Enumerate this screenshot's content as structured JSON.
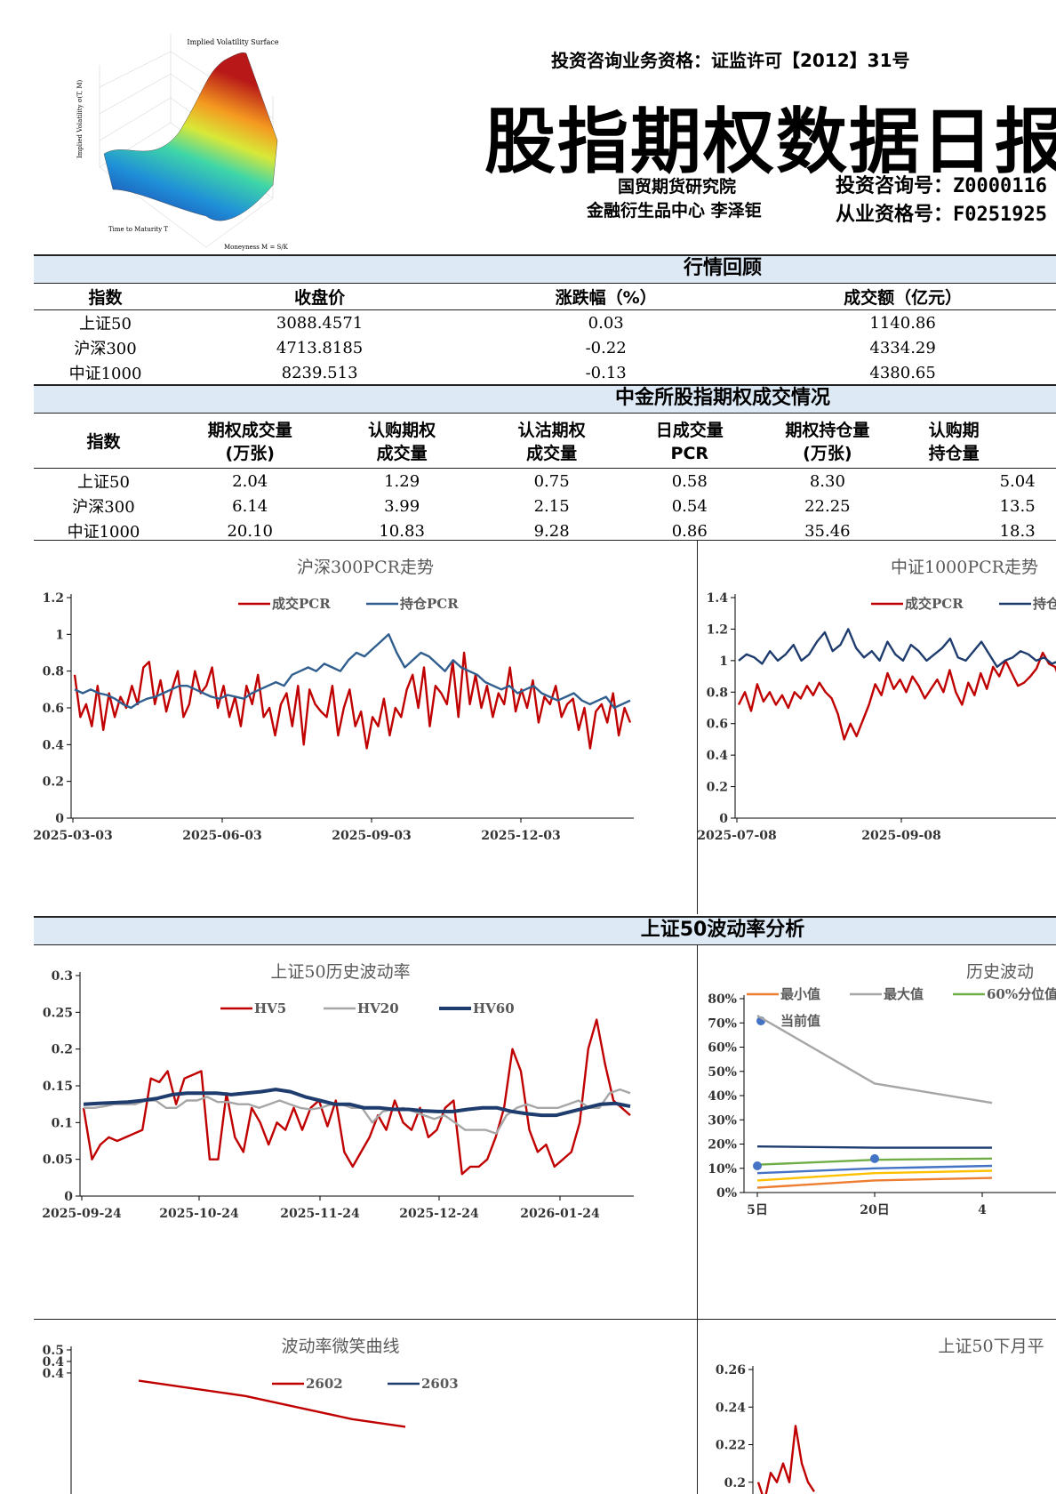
{
  "header": {
    "license": "投资咨询业务资格：证监许可【2012】31号",
    "title": "股指期权数据日报",
    "institute": "国贸期货研究院",
    "department": "金融衍生品中心  李泽钜",
    "advisory_label": "投资咨询号：",
    "advisory_no": "Z0000116",
    "cert_label": "从业资格号：",
    "cert_no": "F0251925",
    "logo": {
      "title": "Implied Volatility Surface",
      "ylabel": "Implied Volatility σ(T, M)",
      "xlabel": "Time to Maturity T",
      "zlabel": "Moneyness M = S/K"
    }
  },
  "market_review": {
    "title": "行情回顾",
    "columns": [
      "指数",
      "收盘价",
      "涨跌幅（%）",
      "成交额（亿元）"
    ],
    "rows": [
      [
        "上证50",
        "3088.4571",
        "0.03",
        "1140.86"
      ],
      [
        "沪深300",
        "4713.8185",
        "-0.22",
        "4334.29"
      ],
      [
        "中证1000",
        "8239.513",
        "-0.13",
        "4380.65"
      ]
    ]
  },
  "option_trading": {
    "title": "中金所股指期权成交情况",
    "columns": [
      [
        "指数",
        ""
      ],
      [
        "期权成交量",
        "(万张)"
      ],
      [
        "认购期权",
        "成交量"
      ],
      [
        "认沽期权",
        "成交量"
      ],
      [
        "日成交量",
        "PCR"
      ],
      [
        "期权持仓量",
        "(万张)"
      ],
      [
        "认购期",
        "持仓量"
      ]
    ],
    "rows": [
      [
        "上证50",
        "2.04",
        "1.29",
        "0.75",
        "0.58",
        "8.30",
        "5.04"
      ],
      [
        "沪深300",
        "6.14",
        "3.99",
        "2.15",
        "0.54",
        "22.25",
        "13.5"
      ],
      [
        "中证1000",
        "20.10",
        "10.83",
        "9.28",
        "0.86",
        "35.46",
        "18.3"
      ]
    ]
  },
  "vol_section_title": "上证50波动率分析",
  "chart_data": [
    {
      "id": "hs300-pcr",
      "type": "line",
      "title": "沪深300PCR走势",
      "ylim": [
        0,
        1.2
      ],
      "yticks": [
        "0",
        "0.2",
        "0.4",
        "0.6",
        "0.8",
        "1",
        "1.2"
      ],
      "xticks": [
        "2025-03-03",
        "2025-06-03",
        "2025-09-03",
        "2025-12-03"
      ],
      "series": [
        {
          "name": "成交PCR",
          "color": "#c00000",
          "values": [
            0.78,
            0.55,
            0.62,
            0.5,
            0.72,
            0.48,
            0.68,
            0.55,
            0.66,
            0.6,
            0.72,
            0.62,
            0.82,
            0.85,
            0.62,
            0.75,
            0.58,
            0.7,
            0.8,
            0.55,
            0.62,
            0.8,
            0.68,
            0.72,
            0.82,
            0.6,
            0.72,
            0.55,
            0.66,
            0.5,
            0.72,
            0.62,
            0.78,
            0.55,
            0.6,
            0.45,
            0.62,
            0.68,
            0.5,
            0.72,
            0.4,
            0.7,
            0.62,
            0.58,
            0.55,
            0.72,
            0.45,
            0.6,
            0.7,
            0.5,
            0.58,
            0.38,
            0.55,
            0.5,
            0.65,
            0.45,
            0.6,
            0.55,
            0.7,
            0.78,
            0.6,
            0.82,
            0.5,
            0.72,
            0.68,
            0.62,
            0.85,
            0.55,
            0.9,
            0.62,
            0.78,
            0.6,
            0.72,
            0.55,
            0.68,
            0.62,
            0.82,
            0.58,
            0.7,
            0.6,
            0.75,
            0.52,
            0.66,
            0.62,
            0.72,
            0.55,
            0.62,
            0.65,
            0.48,
            0.6,
            0.38,
            0.58,
            0.62,
            0.52,
            0.68,
            0.45,
            0.6,
            0.52
          ]
        },
        {
          "name": "持仓PCR",
          "color": "#305e8e",
          "values": [
            0.7,
            0.68,
            0.7,
            0.68,
            0.67,
            0.65,
            0.62,
            0.6,
            0.63,
            0.65,
            0.66,
            0.68,
            0.7,
            0.72,
            0.72,
            0.7,
            0.68,
            0.66,
            0.65,
            0.67,
            0.66,
            0.65,
            0.68,
            0.7,
            0.72,
            0.74,
            0.72,
            0.78,
            0.8,
            0.82,
            0.8,
            0.84,
            0.82,
            0.8,
            0.86,
            0.9,
            0.88,
            0.92,
            0.96,
            1.0,
            0.9,
            0.82,
            0.86,
            0.9,
            0.88,
            0.84,
            0.8,
            0.86,
            0.82,
            0.8,
            0.78,
            0.74,
            0.72,
            0.7,
            0.72,
            0.68,
            0.7,
            0.72,
            0.68,
            0.66,
            0.64,
            0.66,
            0.68,
            0.64,
            0.62,
            0.64,
            0.66,
            0.6,
            0.62,
            0.64
          ]
        }
      ]
    },
    {
      "id": "zz1000-pcr",
      "type": "line",
      "title": "中证1000PCR走势",
      "ylim": [
        0,
        1.4
      ],
      "yticks": [
        "0",
        "0.2",
        "0.4",
        "0.6",
        "0.8",
        "1",
        "1.2",
        "1.4"
      ],
      "xticks": [
        "2025-07-08",
        "2025-09-08"
      ],
      "series": [
        {
          "name": "成交PCR",
          "color": "#c00000",
          "values": [
            0.72,
            0.8,
            0.68,
            0.85,
            0.74,
            0.8,
            0.72,
            0.78,
            0.7,
            0.8,
            0.76,
            0.84,
            0.78,
            0.86,
            0.8,
            0.76,
            0.66,
            0.5,
            0.6,
            0.52,
            0.62,
            0.72,
            0.85,
            0.78,
            0.92,
            0.82,
            0.88,
            0.8,
            0.9,
            0.84,
            0.76,
            0.82,
            0.88,
            0.8,
            0.94,
            0.8,
            0.72,
            0.86,
            0.78,
            0.92,
            0.82,
            0.96,
            0.9,
            1.0,
            0.92,
            0.84,
            0.86,
            0.9,
            0.95,
            1.05,
            0.98,
            0.96,
            0.85,
            0.92
          ]
        },
        {
          "name": "持仓PCR",
          "color": "#1f3c6e",
          "values": [
            1.0,
            1.04,
            1.02,
            0.98,
            1.06,
            1.0,
            1.04,
            1.1,
            1.0,
            1.04,
            1.12,
            1.18,
            1.06,
            1.1,
            1.2,
            1.08,
            1.02,
            1.06,
            1.0,
            1.12,
            1.04,
            1.0,
            1.1,
            1.06,
            1.0,
            1.04,
            1.08,
            1.14,
            1.02,
            1.0,
            1.06,
            1.12,
            1.04,
            0.96,
            1.0,
            1.02,
            1.06,
            1.04,
            1.0,
            1.02,
            0.98,
            1.0,
            1.04
          ]
        }
      ]
    },
    {
      "id": "sz50-hv",
      "type": "line",
      "title": "上证50历史波动率",
      "ylim": [
        0,
        0.3
      ],
      "yticks": [
        "0",
        "0.05",
        "0.1",
        "0.15",
        "0.2",
        "0.25",
        "0.3"
      ],
      "xticks": [
        "2025-09-24",
        "2025-10-24",
        "2025-11-24",
        "2025-12-24",
        "2026-01-24"
      ],
      "series": [
        {
          "name": "HV5",
          "color": "#c00000",
          "values": [
            0.12,
            0.05,
            0.07,
            0.08,
            0.075,
            0.08,
            0.085,
            0.09,
            0.16,
            0.155,
            0.17,
            0.125,
            0.16,
            0.165,
            0.17,
            0.05,
            0.05,
            0.14,
            0.08,
            0.06,
            0.12,
            0.1,
            0.07,
            0.1,
            0.09,
            0.12,
            0.09,
            0.12,
            0.13,
            0.095,
            0.13,
            0.06,
            0.04,
            0.06,
            0.08,
            0.11,
            0.09,
            0.13,
            0.1,
            0.09,
            0.12,
            0.08,
            0.09,
            0.12,
            0.13,
            0.03,
            0.04,
            0.04,
            0.05,
            0.08,
            0.12,
            0.2,
            0.17,
            0.09,
            0.06,
            0.07,
            0.04,
            0.05,
            0.06,
            0.1,
            0.2,
            0.24,
            0.18,
            0.13,
            0.12,
            0.11
          ]
        },
        {
          "name": "HV20",
          "color": "#a6a6a6",
          "values": [
            0.12,
            0.12,
            0.122,
            0.125,
            0.125,
            0.125,
            0.13,
            0.13,
            0.12,
            0.12,
            0.13,
            0.13,
            0.135,
            0.128,
            0.128,
            0.125,
            0.125,
            0.12,
            0.125,
            0.13,
            0.125,
            0.12,
            0.118,
            0.12,
            0.125,
            0.125,
            0.12,
            0.12,
            0.1,
            0.115,
            0.118,
            0.12,
            0.115,
            0.11,
            0.105,
            0.11,
            0.1,
            0.09,
            0.09,
            0.09,
            0.085,
            0.11,
            0.12,
            0.125,
            0.12,
            0.12,
            0.12,
            0.125,
            0.13,
            0.12,
            0.12,
            0.14,
            0.145,
            0.14
          ]
        },
        {
          "name": "HV60",
          "color": "#1f3c6e",
          "values": [
            0.125,
            0.126,
            0.127,
            0.128,
            0.13,
            0.133,
            0.138,
            0.14,
            0.14,
            0.14,
            0.138,
            0.14,
            0.142,
            0.145,
            0.142,
            0.135,
            0.13,
            0.125,
            0.125,
            0.12,
            0.12,
            0.118,
            0.118,
            0.116,
            0.115,
            0.115,
            0.118,
            0.12,
            0.12,
            0.115,
            0.112,
            0.11,
            0.11,
            0.115,
            0.12,
            0.125,
            0.126,
            0.122
          ]
        }
      ]
    },
    {
      "id": "hv-cone",
      "type": "line",
      "title": "历史波动",
      "ylim": [
        0,
        0.8
      ],
      "yticks": [
        "0%",
        "10%",
        "20%",
        "30%",
        "40%",
        "50%",
        "60%",
        "70%",
        "80%"
      ],
      "xticks": [
        "5日",
        "20日",
        "4"
      ],
      "series": [
        {
          "name": "最小值",
          "color": "#ed7d31",
          "values": [
            0.02,
            0.05,
            0.06
          ]
        },
        {
          "name": "最大值",
          "color": "#a6a6a6",
          "values": [
            0.73,
            0.45,
            0.37
          ]
        },
        {
          "name": "",
          "color": "#ffc000",
          "values": [
            0.05,
            0.08,
            0.09
          ]
        },
        {
          "name": "60%分位值",
          "color": "#70ad47",
          "values": [
            0.115,
            0.135,
            0.14
          ]
        },
        {
          "name": "当前值",
          "color": "#4472c4",
          "values": [
            0.11,
            0.14
          ]
        },
        {
          "name": "",
          "color": "#4472c4",
          "values": [
            0.08,
            0.1,
            0.11
          ]
        },
        {
          "name": "",
          "color": "#1f3c6e",
          "values": [
            0.19,
            0.185,
            0.185
          ]
        }
      ]
    },
    {
      "id": "smile",
      "type": "line",
      "title": "波动率微笑曲线",
      "ylim": [
        0,
        0.5
      ],
      "yticks": [
        "0.5",
        "0.4",
        "0.4"
      ],
      "xticks": [],
      "series": [
        {
          "name": "2602",
          "color": "#c00000",
          "values": [
            0.42,
            0.4,
            0.38,
            0.35,
            0.32,
            0.3
          ]
        },
        {
          "name": "2603",
          "color": "#1f3c6e",
          "values": []
        }
      ]
    },
    {
      "id": "sz50-next",
      "type": "line",
      "title": "上证50下月平",
      "ylim": [
        0.18,
        0.26
      ],
      "yticks": [
        "0.26",
        "0.24",
        "0.22",
        "0.2"
      ],
      "xticks": [],
      "series": [
        {
          "name": "",
          "color": "#c00000",
          "values": [
            0.2,
            0.19,
            0.205,
            0.2,
            0.21,
            0.2,
            0.23,
            0.21,
            0.2,
            0.195
          ]
        }
      ]
    }
  ]
}
